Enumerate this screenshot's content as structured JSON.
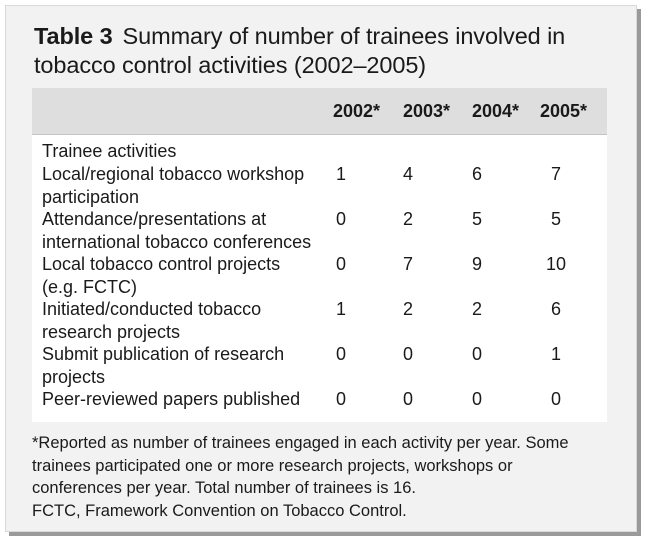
{
  "table_label": "Table 3",
  "title_line1": "Summary of number of trainees involved in",
  "title_line2": "tobacco control activities (2002–2005)",
  "columns": [
    "2002*",
    "2003*",
    "2004*",
    "2005*"
  ],
  "section_heading": "Trainee activities",
  "rows": [
    {
      "label_lines": [
        "Local/regional tobacco workshop",
        "participation"
      ],
      "values": [
        "1",
        "4",
        "6",
        "7"
      ]
    },
    {
      "label_lines": [
        "Attendance/presentations at",
        "international tobacco conferences"
      ],
      "values": [
        "0",
        "2",
        "5",
        "5"
      ]
    },
    {
      "label_lines": [
        "Local tobacco control projects",
        "(e.g. FCTC)"
      ],
      "values": [
        "0",
        "7",
        "9",
        "10"
      ]
    },
    {
      "label_lines": [
        "Initiated/conducted tobacco",
        "research projects"
      ],
      "values": [
        "1",
        "2",
        "2",
        "6"
      ]
    },
    {
      "label_lines": [
        "Submit publication of research",
        "projects"
      ],
      "values": [
        "0",
        "0",
        "0",
        "1"
      ]
    },
    {
      "label_lines": [
        "Peer-reviewed papers published"
      ],
      "values": [
        "0",
        "0",
        "0",
        "0"
      ]
    }
  ],
  "footnote_lines": [
    "*Reported as number of trainees engaged in each activity per year. Some",
    "trainees participated one or more research projects, workshops or",
    "conferences per year. Total number of trainees is 16.",
    "FCTC, Framework Convention on Tobacco Control."
  ]
}
